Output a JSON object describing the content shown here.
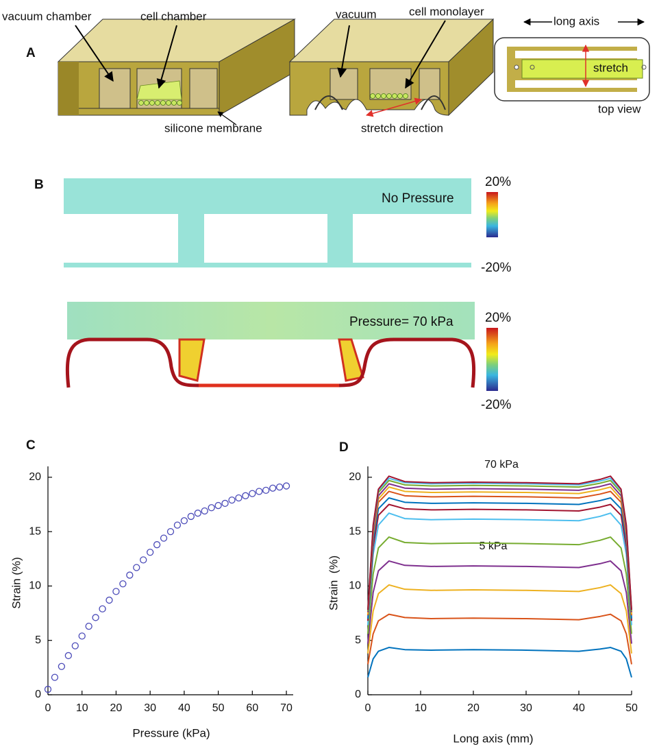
{
  "panel_a": {
    "label": "A",
    "left": {
      "vacuum_chamber": "vacuum chamber",
      "cell_chamber": "cell chamber",
      "membrane": "silicone membrane"
    },
    "middle": {
      "vacuum": "vacuum",
      "cell_monolayer": "cell monolayer",
      "stretch_direction": "stretch direction"
    },
    "right": {
      "long_axis": "long axis",
      "stretch": "stretch",
      "top_view": "top view"
    }
  },
  "panel_b": {
    "label": "B",
    "top": {
      "text": "No Pressure",
      "max": "20%",
      "min": "-20%"
    },
    "bottom": {
      "text": "Pressure= 70 kPa",
      "max": "20%",
      "min": "-20%"
    }
  },
  "chart_data": [
    {
      "type": "scatter",
      "label": "C",
      "xlabel": "Pressure (kPa)",
      "ylabel": "Strain (%)",
      "color": "#4a4ab8",
      "x": [
        0,
        2,
        4,
        6,
        8,
        10,
        12,
        14,
        16,
        18,
        20,
        22,
        24,
        26,
        28,
        30,
        32,
        34,
        36,
        38,
        40,
        42,
        44,
        46,
        48,
        50,
        52,
        54,
        56,
        58,
        60,
        62,
        64,
        66,
        68,
        70
      ],
      "values": [
        0.5,
        1.6,
        2.6,
        3.6,
        4.5,
        5.4,
        6.3,
        7.1,
        7.9,
        8.7,
        9.5,
        10.2,
        11.0,
        11.7,
        12.4,
        13.1,
        13.8,
        14.4,
        15.0,
        15.6,
        16.0,
        16.4,
        16.7,
        16.9,
        17.2,
        17.4,
        17.6,
        17.9,
        18.1,
        18.3,
        18.5,
        18.7,
        18.8,
        19.0,
        19.1,
        19.2
      ],
      "xlim": [
        0,
        72
      ],
      "ylim": [
        0,
        21
      ],
      "xticks": [
        0,
        10,
        20,
        30,
        40,
        50,
        60,
        70
      ],
      "yticks": [
        0,
        5,
        10,
        15,
        20
      ]
    },
    {
      "type": "line",
      "label": "D",
      "xlabel": "Long axis (mm)",
      "ylabel": "Strain  (%)",
      "annotations": [
        "70 kPa",
        "5 kPa"
      ],
      "x": [
        0,
        1,
        2,
        4,
        7,
        12,
        20,
        30,
        40,
        44,
        46,
        48,
        49,
        50
      ],
      "series": [
        {
          "color": "#0072bd",
          "values": [
            1.6,
            3.3,
            4.0,
            4.35,
            4.15,
            4.1,
            4.15,
            4.1,
            4.0,
            4.2,
            4.35,
            4.0,
            3.3,
            1.6
          ]
        },
        {
          "color": "#d95319",
          "values": [
            2.8,
            5.6,
            6.8,
            7.4,
            7.1,
            7.0,
            7.05,
            7.0,
            6.9,
            7.2,
            7.4,
            6.8,
            5.6,
            2.8
          ]
        },
        {
          "color": "#edb120",
          "values": [
            3.8,
            7.7,
            9.3,
            10.1,
            9.7,
            9.6,
            9.65,
            9.6,
            9.5,
            9.85,
            10.1,
            9.3,
            7.7,
            3.8
          ]
        },
        {
          "color": "#7e2f8e",
          "values": [
            4.7,
            9.4,
            11.4,
            12.3,
            11.9,
            11.8,
            11.85,
            11.8,
            11.7,
            12.05,
            12.3,
            11.4,
            9.4,
            4.7
          ]
        },
        {
          "color": "#77ac30",
          "values": [
            5.6,
            11.1,
            13.5,
            14.5,
            14.0,
            13.9,
            13.95,
            13.9,
            13.8,
            14.2,
            14.5,
            13.5,
            11.1,
            5.6
          ]
        },
        {
          "color": "#4dbeee",
          "values": [
            6.4,
            12.9,
            15.6,
            16.7,
            16.2,
            16.1,
            16.15,
            16.1,
            16.0,
            16.4,
            16.7,
            15.6,
            12.9,
            6.4
          ]
        },
        {
          "color": "#a2142f",
          "values": [
            6.8,
            13.6,
            16.5,
            17.5,
            17.1,
            17.0,
            17.05,
            17.0,
            16.9,
            17.25,
            17.5,
            16.5,
            13.6,
            6.8
          ]
        },
        {
          "color": "#0072bd",
          "values": [
            7.0,
            14.1,
            17.1,
            18.1,
            17.7,
            17.6,
            17.65,
            17.6,
            17.5,
            17.85,
            18.1,
            17.1,
            14.1,
            7.0
          ]
        },
        {
          "color": "#d95319",
          "values": [
            7.3,
            14.6,
            17.7,
            18.7,
            18.3,
            18.2,
            18.25,
            18.2,
            18.1,
            18.45,
            18.7,
            17.7,
            14.6,
            7.3
          ]
        },
        {
          "color": "#edb120",
          "values": [
            7.4,
            14.9,
            18.0,
            19.1,
            18.7,
            18.6,
            18.65,
            18.6,
            18.5,
            18.85,
            19.1,
            18.0,
            14.9,
            7.4
          ]
        },
        {
          "color": "#7e2f8e",
          "values": [
            7.6,
            15.1,
            18.3,
            19.4,
            19.0,
            18.9,
            18.95,
            18.9,
            18.8,
            19.15,
            19.4,
            18.3,
            15.1,
            7.6
          ]
        },
        {
          "color": "#77ac30",
          "values": [
            7.7,
            15.4,
            18.6,
            19.7,
            19.3,
            19.2,
            19.25,
            19.2,
            19.1,
            19.45,
            19.7,
            18.6,
            15.4,
            7.7
          ]
        },
        {
          "color": "#4dbeee",
          "values": [
            7.8,
            15.5,
            18.8,
            19.9,
            19.5,
            19.4,
            19.45,
            19.4,
            19.3,
            19.65,
            19.9,
            18.8,
            15.5,
            7.8
          ]
        },
        {
          "color": "#a2142f",
          "values": [
            7.8,
            15.6,
            18.9,
            20.1,
            19.6,
            19.5,
            19.55,
            19.5,
            19.4,
            19.8,
            20.1,
            18.9,
            15.6,
            7.8
          ]
        }
      ],
      "xlim": [
        0,
        50
      ],
      "ylim": [
        0,
        21
      ],
      "xticks": [
        0,
        10,
        20,
        30,
        40,
        50
      ],
      "yticks": [
        0,
        5,
        10,
        15,
        20
      ]
    }
  ]
}
